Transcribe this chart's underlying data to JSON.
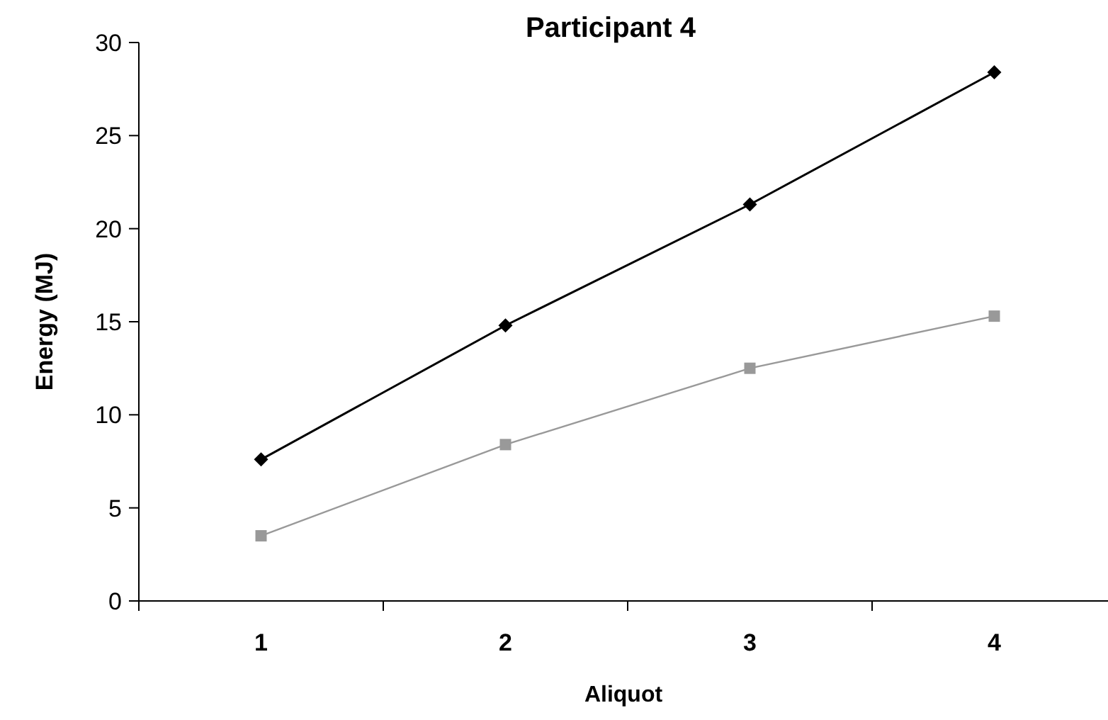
{
  "chart_data": {
    "type": "line",
    "title": "Participant 4",
    "xlabel": "Aliquot",
    "ylabel": "Energy (MJ)",
    "categories": [
      "1",
      "2",
      "3",
      "4"
    ],
    "ylim": [
      0,
      30
    ],
    "yticks": [
      0,
      5,
      10,
      15,
      20,
      25,
      30
    ],
    "grid": false,
    "series": [
      {
        "color": "#000000",
        "marker": "diamond",
        "values": [
          7.6,
          14.8,
          21.3,
          28.4
        ]
      },
      {
        "color": "#999999",
        "marker": "square",
        "values": [
          3.5,
          8.4,
          12.5,
          15.3
        ]
      }
    ]
  }
}
